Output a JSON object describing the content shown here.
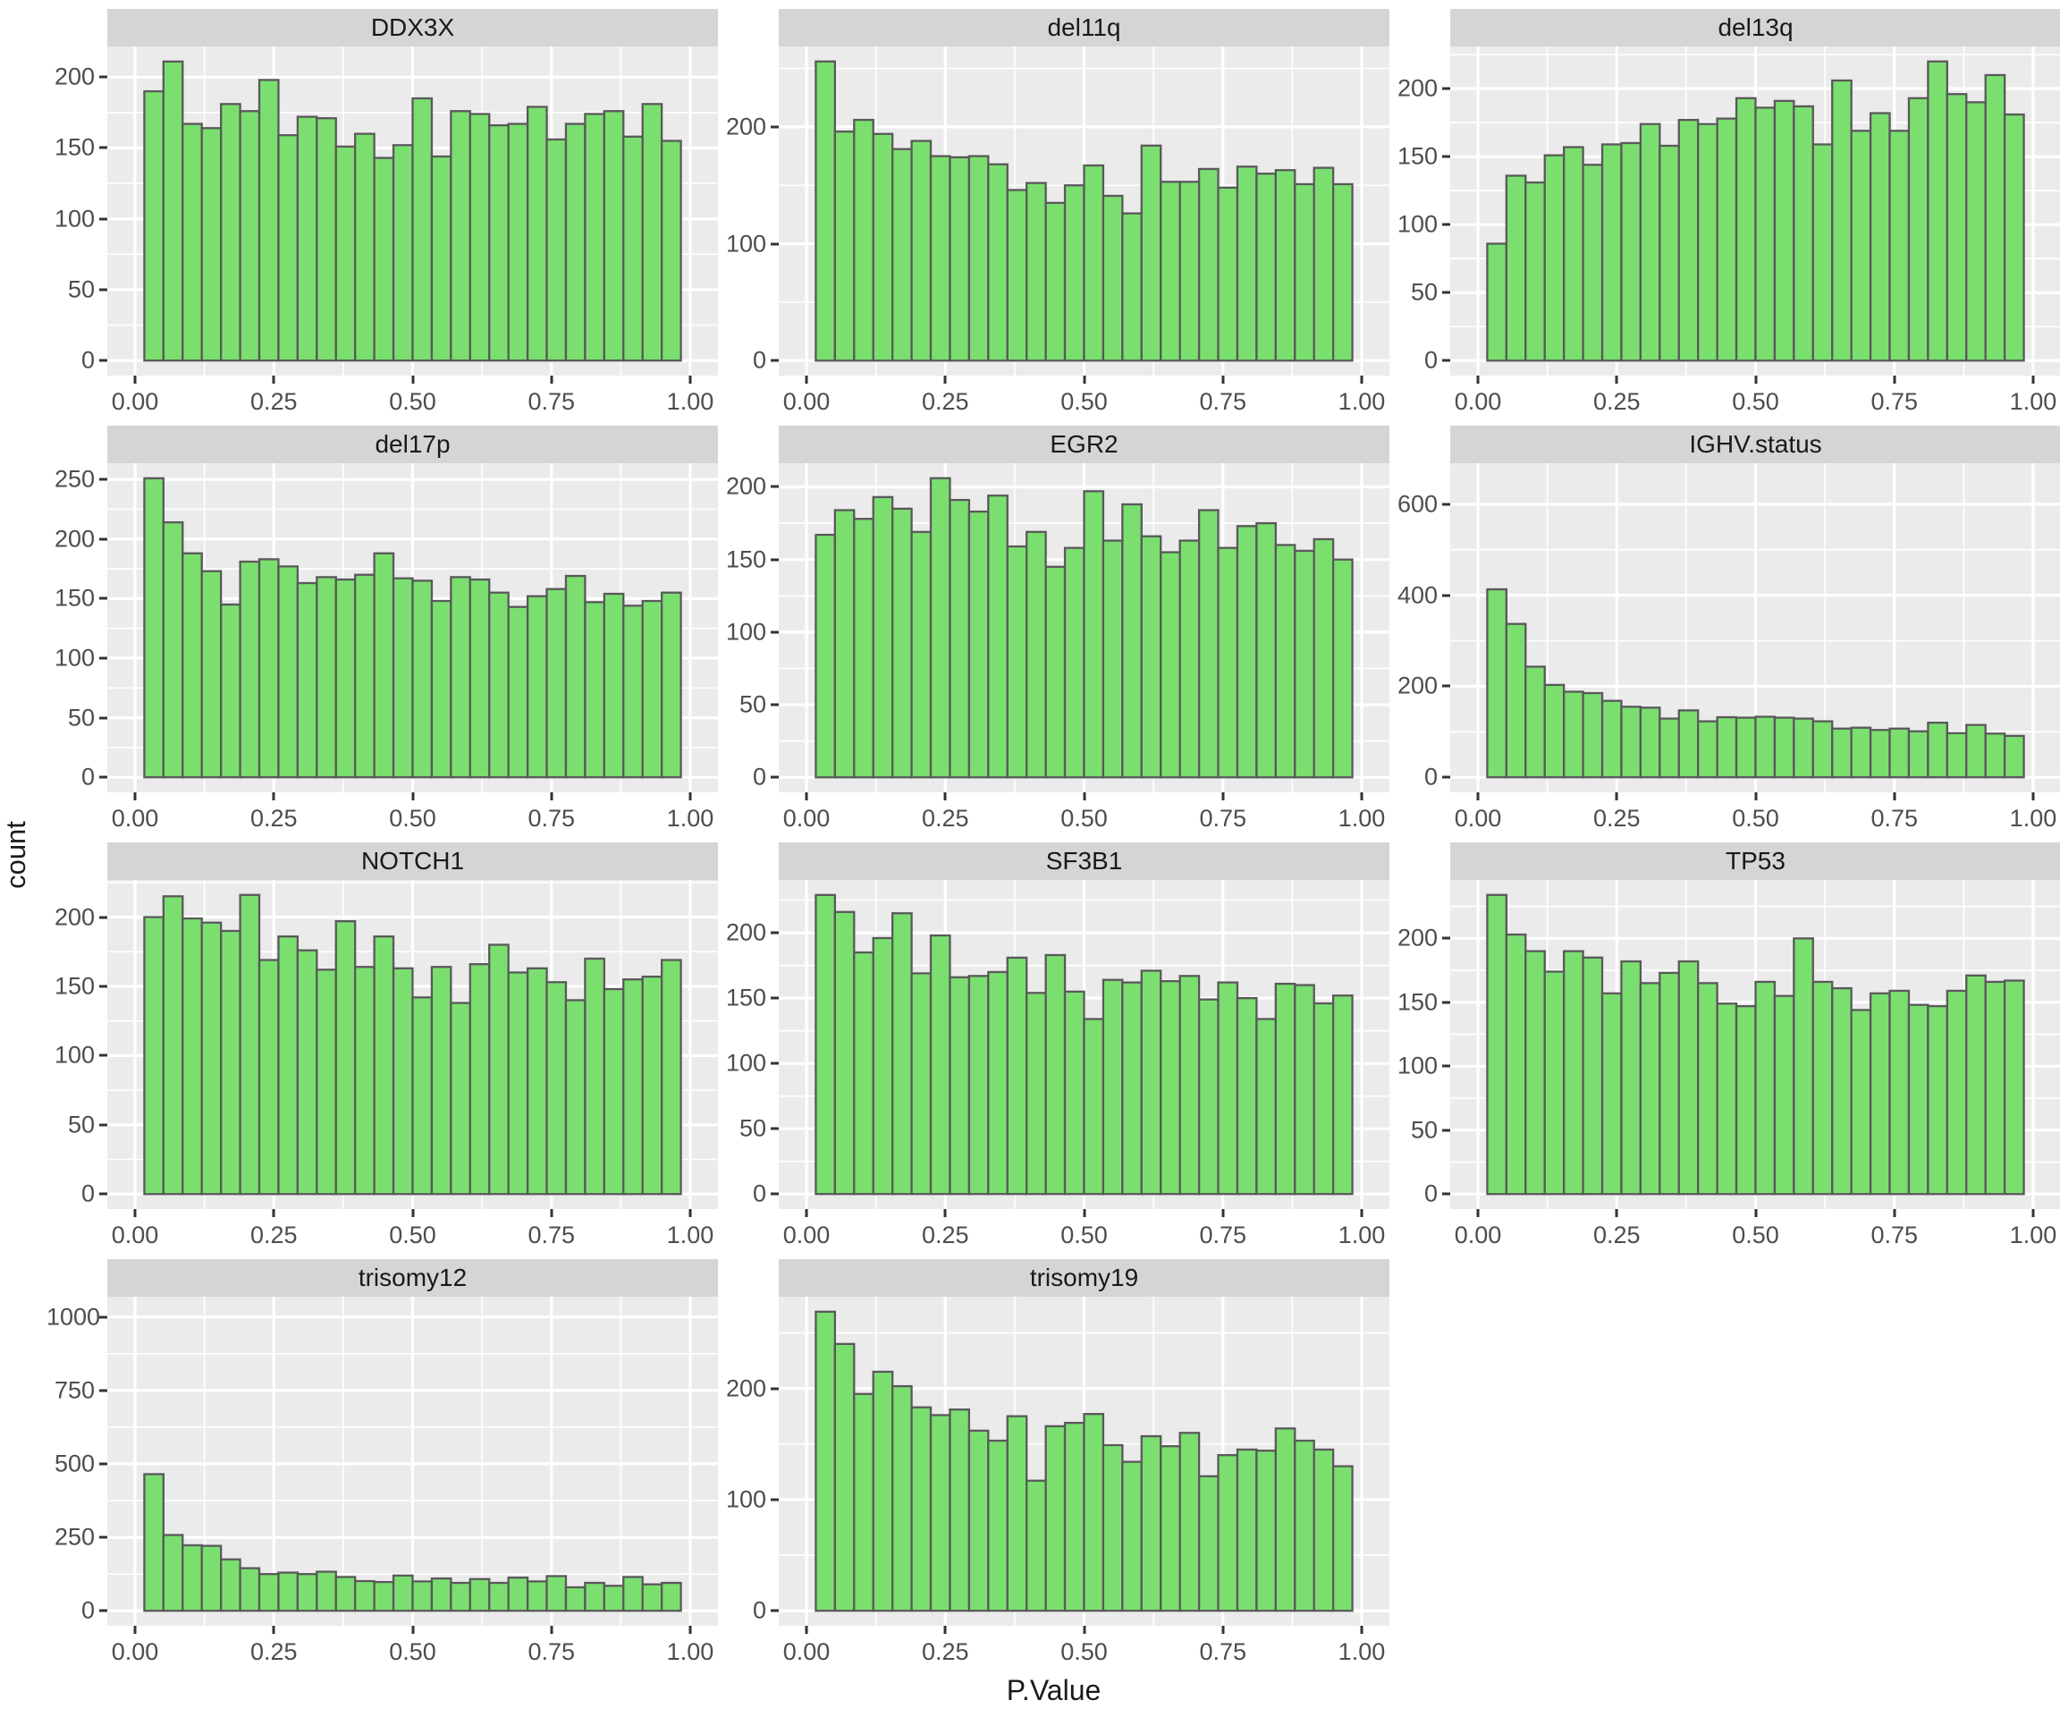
{
  "figure": {
    "ylabel": "count",
    "xlabel": "P.Value",
    "x_tick_labels": [
      "0.00",
      "0.25",
      "0.50",
      "0.75",
      "1.00"
    ]
  },
  "style": {
    "bar_fill": "#7bdf70",
    "bar_stroke": "#595959",
    "panel_bg": "#ebebeb",
    "strip_bg": "#d5d5d5",
    "grid_color": "#ffffff",
    "tick_label_color": "#4d4d4d",
    "axis_title_color": "#1a1a1a",
    "tick_mark_color": "#333333"
  },
  "chart_data": {
    "type": "bar",
    "subtype": "faceted-histograms",
    "title": "",
    "xlabel": "P.Value",
    "ylabel": "count",
    "xlim": [
      -0.05,
      1.05
    ],
    "x_ticks": [
      0,
      0.25,
      0.5,
      0.75,
      1
    ],
    "x_minor_ticks": [
      0.125,
      0.375,
      0.625,
      0.875
    ],
    "bin_start": 0.0167,
    "bin_width": 0.03452,
    "grid": true,
    "legend": "none",
    "panels": [
      {
        "title": "DDX3X",
        "yticks": [
          0,
          50,
          100,
          150,
          200
        ],
        "ylim": [
          -10.6,
          221.6
        ],
        "values": [
          190,
          211,
          167,
          164,
          181,
          176,
          198,
          159,
          172,
          171,
          151,
          160,
          143,
          152,
          185,
          144,
          176,
          174,
          166,
          167,
          179,
          156,
          167,
          174,
          176,
          158,
          181,
          155
        ]
      },
      {
        "title": "del11q",
        "yticks": [
          0,
          100,
          200
        ],
        "ylim": [
          -12.8,
          268.8
        ],
        "values": [
          256,
          196,
          206,
          194,
          181,
          188,
          175,
          174,
          175,
          168,
          146,
          152,
          135,
          150,
          167,
          141,
          126,
          184,
          153,
          153,
          164,
          148,
          166,
          160,
          163,
          151,
          165,
          151
        ]
      },
      {
        "title": "del13q",
        "yticks": [
          0,
          50,
          100,
          150,
          200
        ],
        "ylim": [
          -11.0,
          231.0
        ],
        "values": [
          86,
          136,
          131,
          151,
          157,
          144,
          159,
          160,
          174,
          158,
          177,
          174,
          178,
          193,
          186,
          191,
          187,
          159,
          206,
          169,
          182,
          169,
          193,
          220,
          196,
          190,
          210,
          181
        ]
      },
      {
        "title": "del17p",
        "yticks": [
          0,
          50,
          100,
          150,
          200,
          250
        ],
        "ylim": [
          -12.6,
          263.6
        ],
        "values": [
          251,
          214,
          188,
          173,
          145,
          181,
          183,
          177,
          163,
          168,
          166,
          170,
          188,
          167,
          165,
          148,
          168,
          166,
          155,
          143,
          152,
          158,
          169,
          147,
          154,
          144,
          148,
          155
        ]
      },
      {
        "title": "EGR2",
        "yticks": [
          0,
          50,
          100,
          150,
          200
        ],
        "ylim": [
          -10.3,
          216.3
        ],
        "values": [
          167,
          184,
          178,
          193,
          185,
          169,
          206,
          191,
          183,
          194,
          159,
          169,
          145,
          158,
          197,
          163,
          188,
          166,
          155,
          163,
          184,
          158,
          173,
          175,
          160,
          156,
          164,
          150
        ]
      },
      {
        "title": "IGHV.status",
        "yticks": [
          0,
          200,
          400,
          600
        ],
        "ylim": [
          -33,
          690
        ],
        "values": [
          413,
          337,
          243,
          203,
          188,
          185,
          168,
          155,
          153,
          129,
          147,
          123,
          132,
          131,
          133,
          131,
          129,
          123,
          107,
          109,
          104,
          107,
          101,
          120,
          97,
          115,
          96,
          91
        ]
      },
      {
        "title": "NOTCH1",
        "yticks": [
          0,
          50,
          100,
          150,
          200
        ],
        "ylim": [
          -10.8,
          226.8
        ],
        "values": [
          200,
          215,
          199,
          196,
          190,
          216,
          169,
          186,
          176,
          162,
          197,
          164,
          186,
          163,
          142,
          164,
          138,
          166,
          180,
          160,
          163,
          153,
          140,
          170,
          148,
          155,
          157,
          169
        ]
      },
      {
        "title": "SF3B1",
        "yticks": [
          0,
          50,
          100,
          150,
          200
        ],
        "ylim": [
          -11.5,
          240.5
        ],
        "values": [
          229,
          216,
          185,
          196,
          215,
          169,
          198,
          166,
          167,
          170,
          181,
          154,
          183,
          155,
          134,
          164,
          162,
          171,
          163,
          167,
          149,
          162,
          150,
          134,
          161,
          160,
          146,
          152
        ]
      },
      {
        "title": "TP53",
        "yticks": [
          0,
          50,
          100,
          150,
          200
        ],
        "ylim": [
          -11.7,
          245.7
        ],
        "values": [
          234,
          203,
          190,
          174,
          190,
          185,
          157,
          182,
          165,
          173,
          182,
          165,
          149,
          147,
          166,
          155,
          200,
          166,
          161,
          144,
          157,
          159,
          148,
          147,
          159,
          171,
          166,
          167
        ]
      },
      {
        "title": "trisomy12",
        "yticks": [
          0,
          250,
          500,
          750,
          1000
        ],
        "ylim": [
          -51,
          1069
        ],
        "values": [
          465,
          258,
          223,
          221,
          175,
          145,
          125,
          130,
          125,
          133,
          115,
          101,
          98,
          120,
          100,
          110,
          95,
          108,
          95,
          113,
          100,
          118,
          80,
          95,
          85,
          115,
          90,
          95
        ]
      },
      {
        "title": "trisomy19",
        "yticks": [
          0,
          100,
          200
        ],
        "ylim": [
          -13.5,
          282.5
        ],
        "values": [
          269,
          240,
          195,
          215,
          202,
          183,
          176,
          181,
          162,
          153,
          175,
          117,
          166,
          169,
          177,
          149,
          134,
          157,
          148,
          160,
          121,
          140,
          145,
          144,
          164,
          153,
          145,
          130
        ]
      }
    ]
  }
}
